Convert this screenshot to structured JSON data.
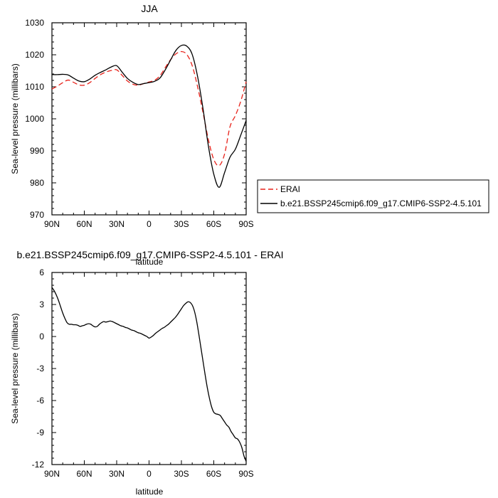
{
  "chart_data": [
    {
      "type": "line",
      "title": "JJA",
      "xlabel": "latitude",
      "ylabel": "Sea-level pressure (millibars)",
      "x_tick_labels": [
        "90N",
        "60N",
        "30N",
        "0",
        "30S",
        "60S",
        "90S"
      ],
      "x_ticks": [
        -90,
        -60,
        -30,
        0,
        30,
        60,
        90
      ],
      "xlim": [
        -90,
        90
      ],
      "ylim": [
        970,
        1030
      ],
      "y_ticks": [
        970,
        980,
        990,
        1000,
        1010,
        1020,
        1030
      ],
      "y_tick_labels": [
        "970",
        "980",
        "990",
        "1000",
        "1010",
        "1020",
        "1030"
      ],
      "legend_position": "right",
      "series": [
        {
          "name": "ERAI",
          "color": "#e8221a",
          "dash": "dashed",
          "x": [
            -90,
            -85,
            -80,
            -75,
            -70,
            -65,
            -60,
            -55,
            -50,
            -45,
            -40,
            -35,
            -30,
            -25,
            -20,
            -15,
            -10,
            -5,
            0,
            5,
            10,
            15,
            20,
            25,
            30,
            35,
            40,
            45,
            50,
            55,
            60,
            65,
            70,
            75,
            80,
            85,
            90
          ],
          "y": [
            1009.3,
            1010.2,
            1011.3,
            1012.1,
            1011.4,
            1010.6,
            1010.5,
            1011.3,
            1012.6,
            1013.8,
            1014.6,
            1015.1,
            1015.3,
            1013.6,
            1011.8,
            1010.8,
            1010.5,
            1011.0,
            1011.5,
            1012.0,
            1013.4,
            1016.0,
            1018.5,
            1020.3,
            1021.0,
            1020.1,
            1016.6,
            1010.0,
            1002.0,
            993.5,
            987.3,
            985.4,
            989.0,
            997.5,
            1001.0,
            1005.5,
            1011.6
          ]
        },
        {
          "name": "b.e21.BSSP245cmip6.f09_g17.CMIP6-SSP2-4.5.101",
          "color": "#000000",
          "dash": "solid",
          "x": [
            -90,
            -85,
            -80,
            -75,
            -70,
            -65,
            -60,
            -55,
            -50,
            -45,
            -40,
            -35,
            -30,
            -25,
            -20,
            -15,
            -10,
            -5,
            0,
            5,
            10,
            15,
            20,
            25,
            30,
            35,
            40,
            45,
            50,
            55,
            60,
            65,
            70,
            75,
            80,
            85,
            90
          ],
          "y": [
            1013.8,
            1013.8,
            1013.9,
            1013.7,
            1012.7,
            1011.8,
            1011.6,
            1012.4,
            1013.6,
            1014.5,
            1015.3,
            1016.2,
            1016.6,
            1014.6,
            1012.6,
            1011.4,
            1010.7,
            1011.0,
            1011.3,
            1011.7,
            1012.7,
            1015.3,
            1018.4,
            1021.4,
            1022.9,
            1022.7,
            1020.1,
            1013.2,
            1003.2,
            991.5,
            982.7,
            978.6,
            983.2,
            988.0,
            990.5,
            994.9,
            999.5
          ]
        }
      ]
    },
    {
      "type": "line",
      "title": "b.e21.BSSP245cmip6.f09_g17.CMIP6-SSP2-4.5.101 - ERAI",
      "xlabel": "latitude",
      "ylabel": "Sea-level pressure (millibars)",
      "x_tick_labels": [
        "90N",
        "60N",
        "30N",
        "0",
        "30S",
        "60S",
        "90S"
      ],
      "x_ticks": [
        -90,
        -60,
        -30,
        0,
        30,
        60,
        90
      ],
      "xlim": [
        -90,
        90
      ],
      "ylim": [
        -12,
        6
      ],
      "y_ticks": [
        -12,
        -9,
        -6,
        -3,
        0,
        3,
        6
      ],
      "y_tick_labels": [
        "-12",
        "-9",
        "-6",
        "-3",
        "0",
        "3",
        "6"
      ],
      "series": [
        {
          "color": "#000000",
          "dash": "solid",
          "x": [
            -90,
            -88,
            -86,
            -84,
            -82,
            -80,
            -78,
            -76,
            -74,
            -72,
            -70,
            -68,
            -66,
            -64,
            -62,
            -60,
            -58,
            -56,
            -54,
            -52,
            -50,
            -48,
            -46,
            -44,
            -42,
            -40,
            -38,
            -36,
            -34,
            -32,
            -30,
            -28,
            -26,
            -24,
            -22,
            -20,
            -18,
            -16,
            -14,
            -12,
            -10,
            -8,
            -6,
            -4,
            -2,
            0,
            2,
            4,
            6,
            8,
            10,
            12,
            14,
            16,
            18,
            20,
            22,
            24,
            26,
            28,
            30,
            32,
            34,
            36,
            38,
            40,
            42,
            44,
            46,
            48,
            50,
            52,
            54,
            56,
            58,
            60,
            62,
            64,
            66,
            68,
            70,
            72,
            74,
            76,
            78,
            80,
            82,
            84,
            86,
            88,
            90
          ],
          "y": [
            4.6,
            4.3,
            3.9,
            3.4,
            2.8,
            2.2,
            1.7,
            1.3,
            1.15,
            1.15,
            1.1,
            1.1,
            1.05,
            0.95,
            1.0,
            1.05,
            1.15,
            1.2,
            1.15,
            1.0,
            0.9,
            0.95,
            1.15,
            1.3,
            1.4,
            1.35,
            1.4,
            1.45,
            1.4,
            1.3,
            1.2,
            1.1,
            1.0,
            0.95,
            0.85,
            0.8,
            0.7,
            0.6,
            0.55,
            0.45,
            0.35,
            0.3,
            0.2,
            0.1,
            0.0,
            -0.15,
            -0.05,
            0.1,
            0.3,
            0.45,
            0.6,
            0.75,
            0.85,
            1.0,
            1.15,
            1.35,
            1.55,
            1.75,
            2.0,
            2.3,
            2.6,
            2.9,
            3.1,
            3.25,
            3.2,
            2.95,
            2.4,
            1.5,
            0.3,
            -1.0,
            -2.3,
            -3.6,
            -4.8,
            -5.8,
            -6.6,
            -7.1,
            -7.25,
            -7.3,
            -7.4,
            -7.7,
            -8.0,
            -8.3,
            -8.5,
            -8.9,
            -9.2,
            -9.5,
            -9.6,
            -9.9,
            -10.4,
            -11.2,
            -11.7
          ]
        }
      ]
    }
  ]
}
